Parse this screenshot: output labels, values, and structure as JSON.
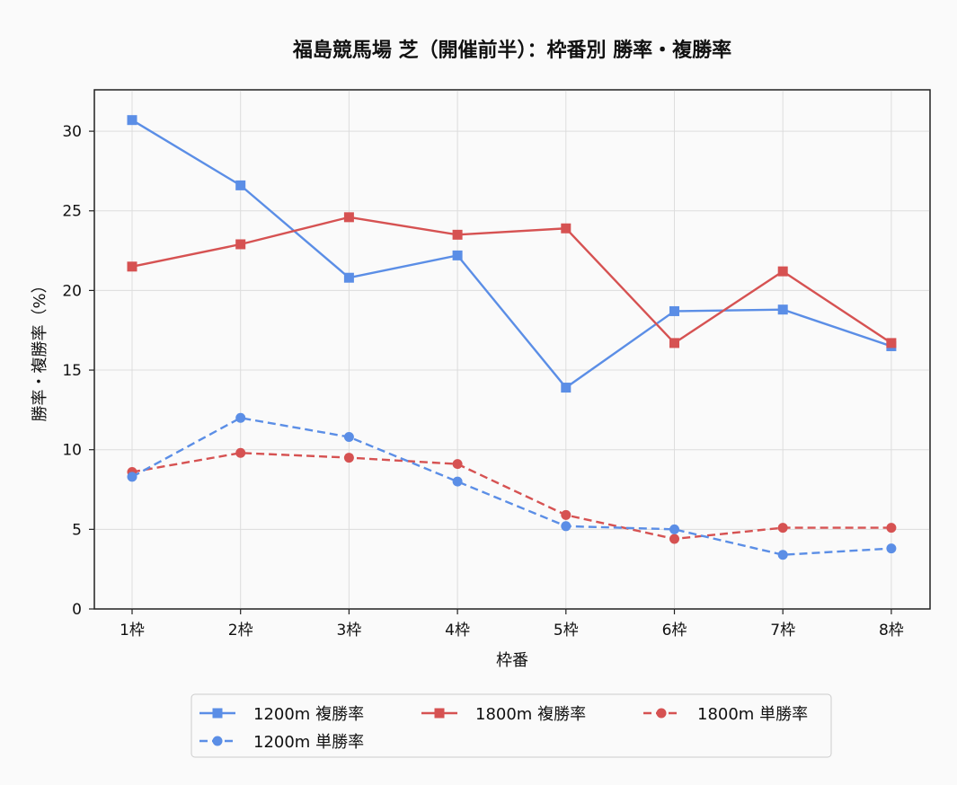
{
  "chart_data": {
    "type": "line",
    "title": "福島競馬場 芝（開催前半）：枠番別 勝率・複勝率",
    "xlabel": "枠番",
    "ylabel": "勝率・複勝率（%）",
    "categories": [
      "1枠",
      "2枠",
      "3枠",
      "4枠",
      "5枠",
      "6枠",
      "7枠",
      "8枠"
    ],
    "ylim": [
      0,
      32.6
    ],
    "yticks": [
      0,
      5,
      10,
      15,
      20,
      25,
      30
    ],
    "grid": true,
    "legend_position": "bottom",
    "series": [
      {
        "name": "1200m 複勝率",
        "color": "#5b8ee6",
        "dash": "solid",
        "marker": "square",
        "values": [
          30.7,
          26.6,
          20.8,
          22.2,
          13.9,
          18.7,
          18.8,
          16.5
        ]
      },
      {
        "name": "1800m 複勝率",
        "color": "#d65252",
        "dash": "solid",
        "marker": "square",
        "values": [
          21.5,
          22.9,
          24.6,
          23.5,
          23.9,
          16.7,
          21.2,
          16.7
        ]
      },
      {
        "name": "1800m 単勝率",
        "color": "#d65252",
        "dash": "dashed",
        "marker": "circle",
        "values": [
          8.6,
          9.8,
          9.5,
          9.1,
          5.9,
          4.4,
          5.1,
          5.1
        ]
      },
      {
        "name": "1200m 単勝率",
        "color": "#5b8ee6",
        "dash": "dashed",
        "marker": "circle",
        "values": [
          8.3,
          12.0,
          10.8,
          8.0,
          5.2,
          5.0,
          3.4,
          3.8
        ]
      }
    ]
  }
}
